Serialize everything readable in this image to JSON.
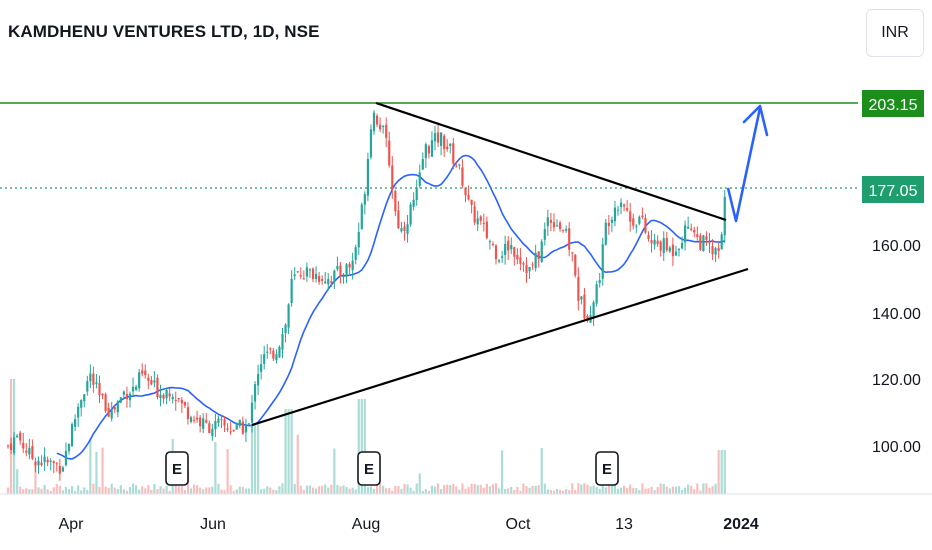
{
  "header": {
    "title": "KAMDHENU VENTURES LTD, 1D, NSE",
    "currency": "INR"
  },
  "colors": {
    "up": "#26a69a",
    "down": "#ef5350",
    "ma": "#2962ff",
    "resistance": "#1b8e1b",
    "current": "#1e9e6f",
    "trendline": "#000000",
    "arrow": "#2962ff"
  },
  "price_badges": {
    "resistance": "203.15",
    "current": "177.05"
  },
  "earnings_marker": "E",
  "chart_data": {
    "type": "candlestick",
    "title": "KAMDHENU VENTURES LTD, 1D, NSE",
    "currency": "INR",
    "y_ticks": [
      "100.00",
      "120.00",
      "140.00",
      "160.00"
    ],
    "x_ticks": [
      {
        "label": "Apr",
        "bold": false
      },
      {
        "label": "Jun",
        "bold": false
      },
      {
        "label": "Aug",
        "bold": false
      },
      {
        "label": "Oct",
        "bold": false
      },
      {
        "label": "13",
        "bold": false
      },
      {
        "label": "2024",
        "bold": true
      }
    ],
    "ylim": [
      85,
      215
    ],
    "resistance_level": 203.15,
    "last_price": 177.05,
    "moving_average": true,
    "earnings_events": 3,
    "notes": "Daily candles Mar-Dec 2023; price rose from ~95 to ~203 in Aug, then consolidated in a symmetrical triangle before breaking out to 177.05."
  }
}
